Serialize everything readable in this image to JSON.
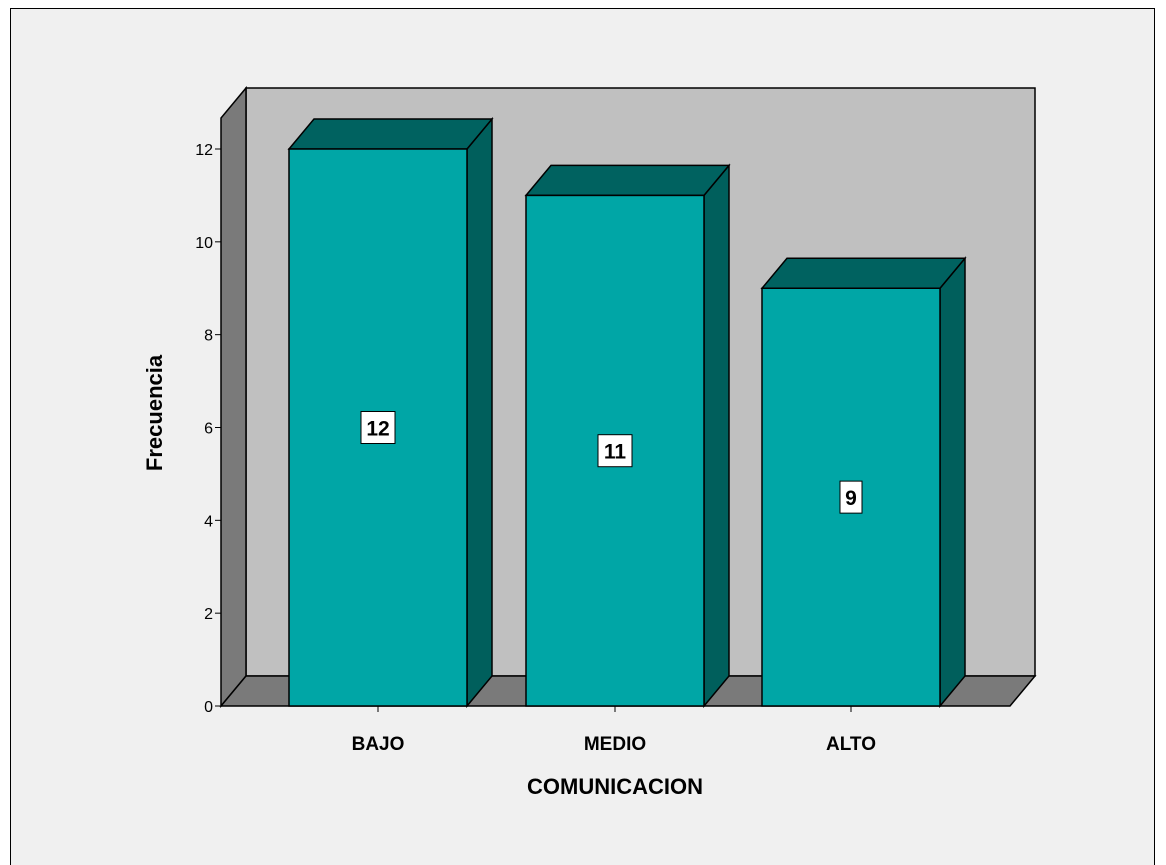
{
  "chart_data": {
    "type": "bar",
    "categories": [
      "BAJO",
      "MEDIO",
      "ALTO"
    ],
    "values": [
      12,
      11,
      9
    ],
    "data_labels": [
      "12",
      "11",
      "9"
    ],
    "xlabel": "COMUNICACION",
    "ylabel": "Frecuencia",
    "ylim": [
      0,
      12.6
    ],
    "yticks": [
      0,
      2,
      4,
      6,
      8,
      10,
      12
    ],
    "grid": false,
    "style": "3d",
    "colors": {
      "bar_front": "#00a6a6",
      "bar_top": "#006260",
      "bar_side": "#005f5c",
      "back_wall": "#c0c0c0",
      "side_wall": "#7a7a7a",
      "floor": "#7a7a7a",
      "background": "#f0f0f0"
    }
  }
}
